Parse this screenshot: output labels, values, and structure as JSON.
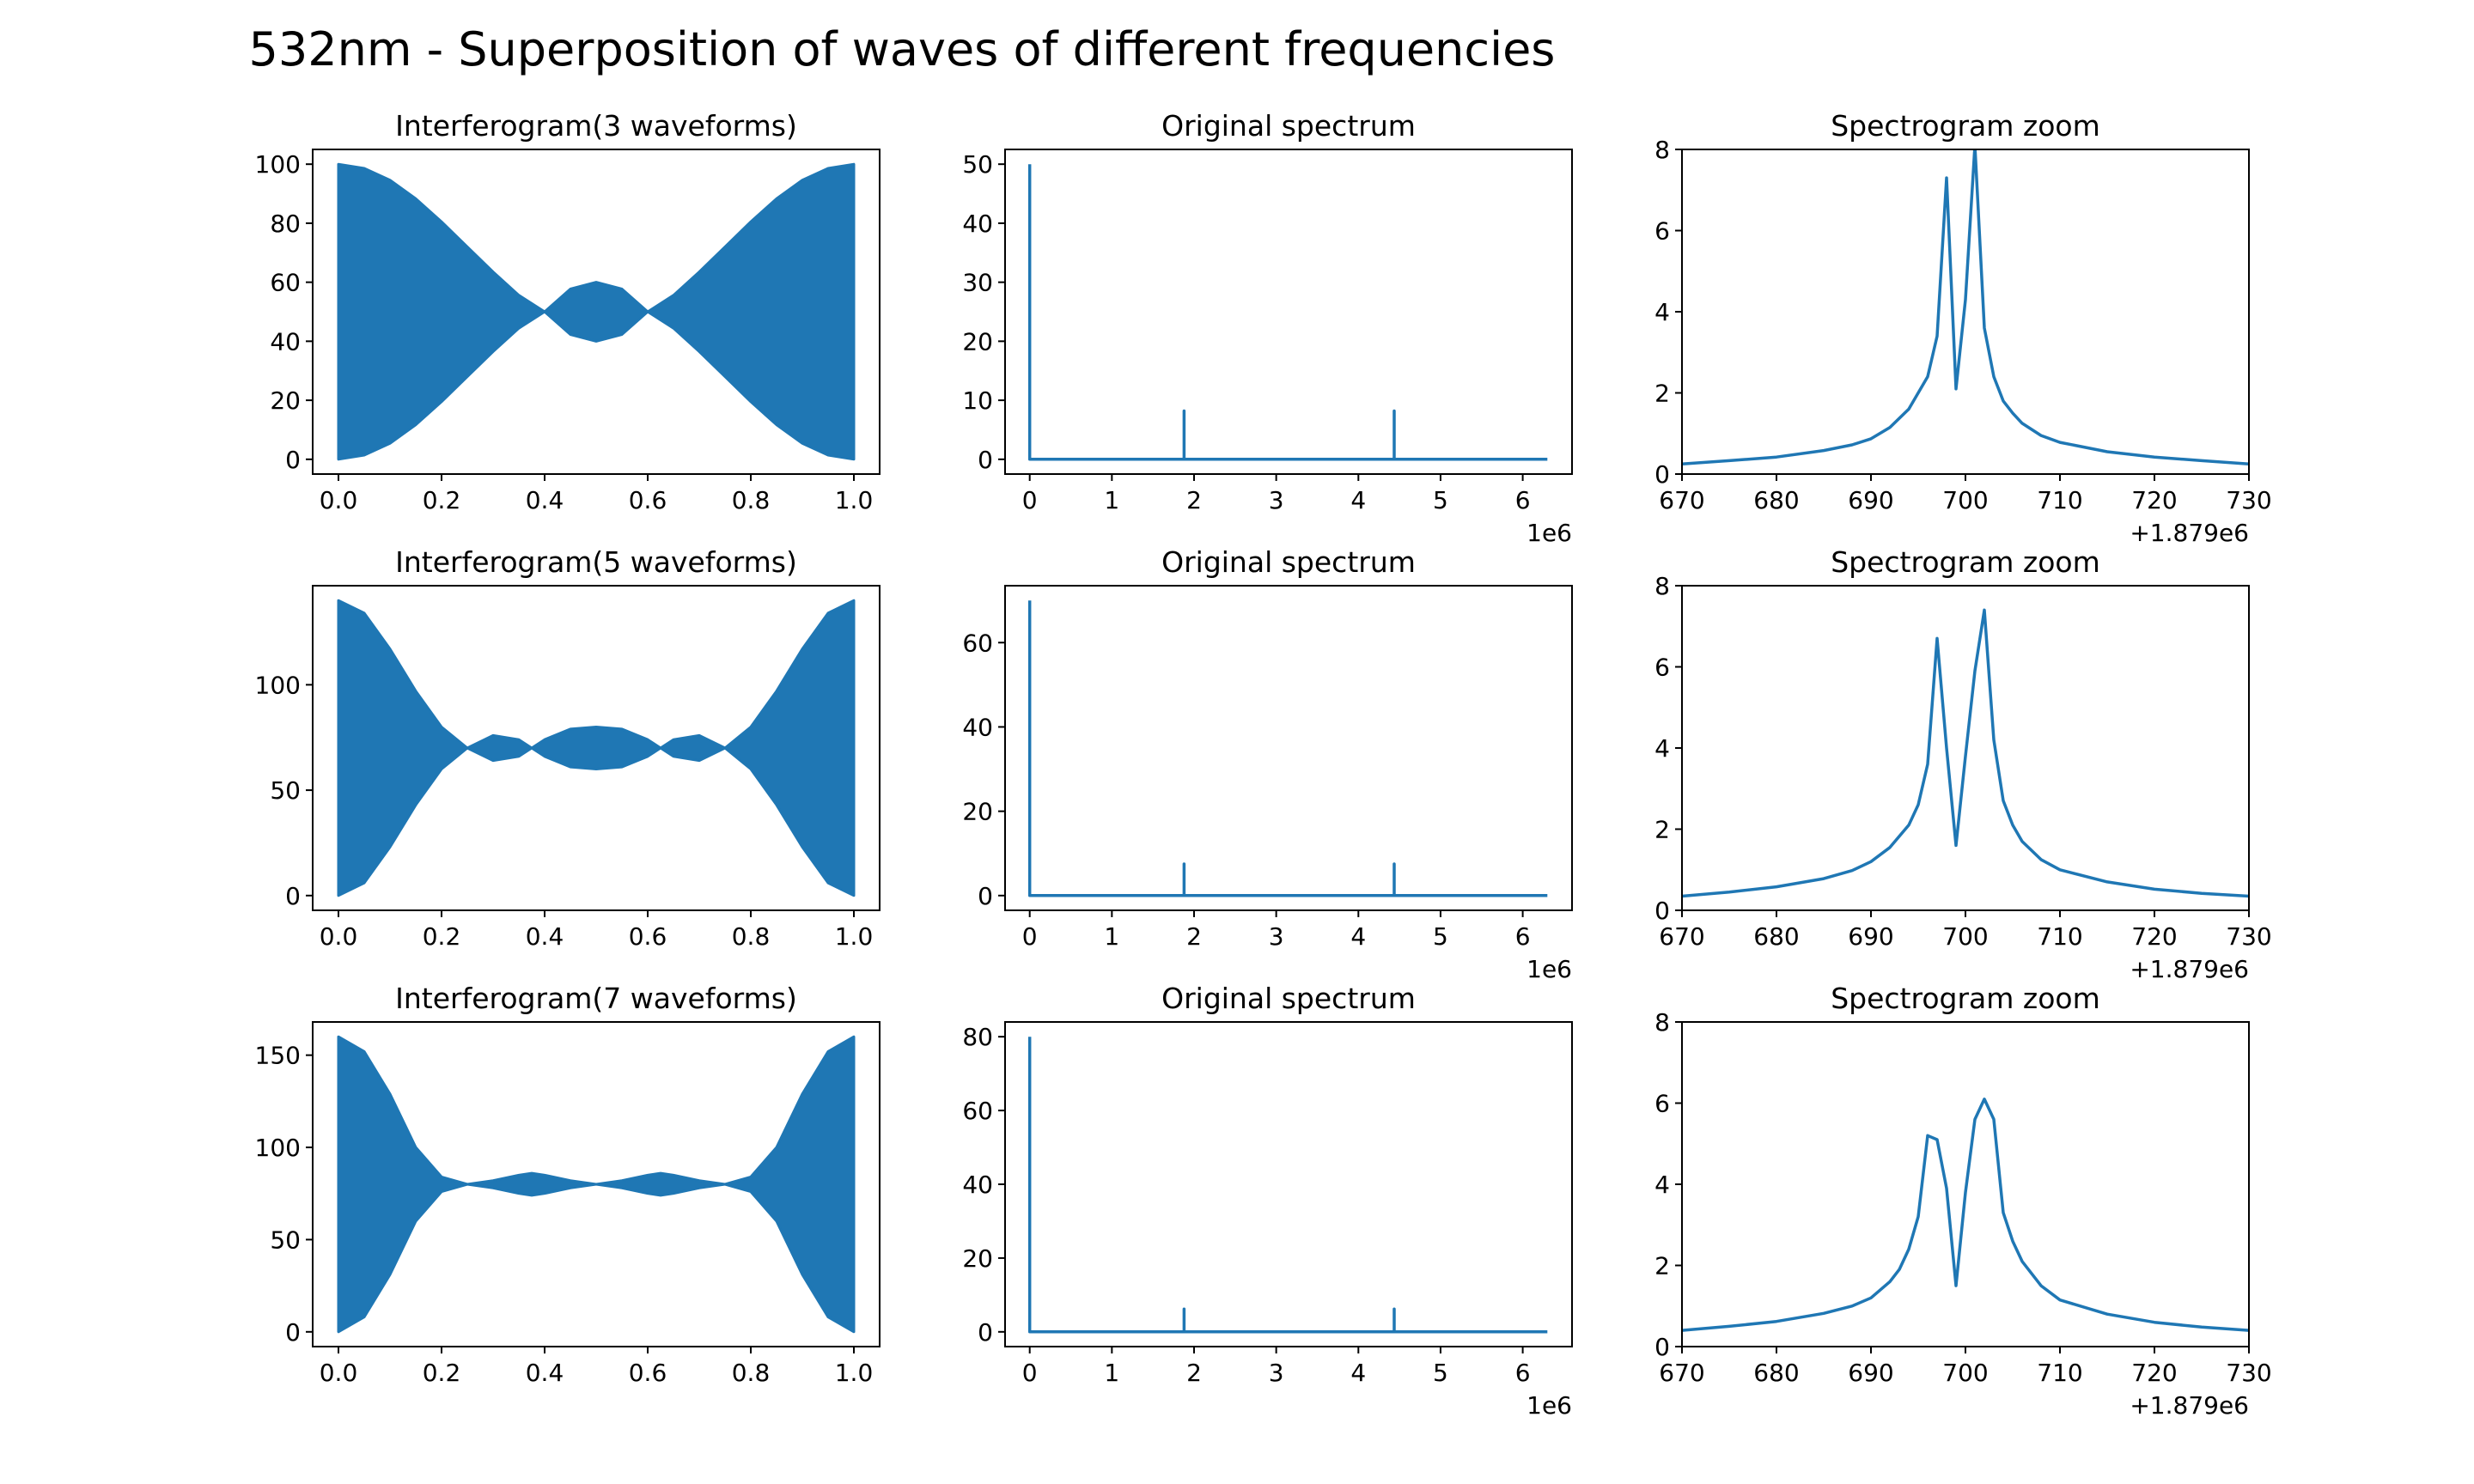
{
  "figure": {
    "suptitle": "532nm - Superposition of waves of different frequencies",
    "line_color": "#1f77b4"
  },
  "chart_data": [
    {
      "type": "area",
      "title": "Interferogram(3 waveforms)",
      "xlim": [
        -0.05,
        1.05
      ],
      "ylim": [
        -5,
        105
      ],
      "xticks": [
        0.0,
        0.2,
        0.4,
        0.6,
        0.8,
        1.0
      ],
      "xtick_labels": [
        "0.0",
        "0.2",
        "0.4",
        "0.6",
        "0.8",
        "1.0"
      ],
      "yticks": [
        0,
        20,
        40,
        60,
        80,
        100
      ],
      "ytick_labels": [
        "0",
        "20",
        "40",
        "60",
        "80",
        "100"
      ],
      "envelope": {
        "x": [
          0,
          0.05,
          0.1,
          0.15,
          0.2,
          0.25,
          0.3,
          0.35,
          0.4,
          0.45,
          0.5,
          0.55,
          0.6,
          0.65,
          0.7,
          0.75,
          0.8,
          0.85,
          0.9,
          0.95,
          1.0
        ],
        "upper": [
          100,
          98.6,
          94.6,
          88.3,
          80.5,
          72,
          63.5,
          55.6,
          50,
          57.7,
          60,
          57.7,
          50,
          55.6,
          63.5,
          72,
          80.5,
          88.3,
          94.6,
          98.6,
          100
        ],
        "lower": [
          0,
          1.4,
          5.4,
          11.7,
          19.5,
          28,
          36.5,
          44.4,
          50,
          42.3,
          40,
          42.3,
          50,
          44.4,
          36.5,
          28,
          19.5,
          11.7,
          5.4,
          1.4,
          0
        ]
      }
    },
    {
      "type": "line",
      "title": "Original spectrum",
      "xlim": [
        -0.3,
        6.6
      ],
      "ylim": [
        -2.5,
        52.5
      ],
      "xticks": [
        0,
        1,
        2,
        3,
        4,
        5,
        6
      ],
      "xtick_labels": [
        "0",
        "1",
        "2",
        "3",
        "4",
        "5",
        "6"
      ],
      "x_offset_label": "1e6",
      "yticks": [
        0,
        10,
        20,
        30,
        40,
        50
      ],
      "ytick_labels": [
        "0",
        "10",
        "20",
        "30",
        "40",
        "50"
      ],
      "x": [
        0,
        0,
        0.03,
        1.879,
        1.879,
        1.879,
        4.436,
        4.436,
        4.436,
        6.3
      ],
      "y": [
        50,
        0,
        0,
        0,
        8.2,
        0,
        0,
        8.2,
        0,
        0
      ]
    },
    {
      "type": "line",
      "title": "Spectrogram zoom",
      "xlim": [
        670,
        730
      ],
      "ylim": [
        0,
        8
      ],
      "xticks": [
        670,
        680,
        690,
        700,
        710,
        720,
        730
      ],
      "xtick_labels": [
        "670",
        "680",
        "690",
        "700",
        "710",
        "720",
        "730"
      ],
      "x_offset_label": "+1.879e6",
      "yticks": [
        0,
        2,
        4,
        6,
        8
      ],
      "ytick_labels": [
        "0",
        "2",
        "4",
        "6",
        "8"
      ],
      "x": [
        670,
        675,
        680,
        685,
        688,
        690,
        692,
        694,
        695,
        696,
        697,
        698,
        699,
        700,
        701,
        702,
        703,
        704,
        705,
        706,
        708,
        710,
        715,
        720,
        725,
        730
      ],
      "y": [
        0.25,
        0.33,
        0.42,
        0.58,
        0.72,
        0.87,
        1.15,
        1.6,
        2.0,
        2.4,
        3.4,
        7.3,
        2.1,
        4.3,
        8.1,
        3.6,
        2.4,
        1.8,
        1.5,
        1.25,
        0.95,
        0.78,
        0.55,
        0.42,
        0.33,
        0.25
      ]
    },
    {
      "type": "area",
      "title": "Interferogram(5 waveforms)",
      "xlim": [
        -0.05,
        1.05
      ],
      "ylim": [
        -7,
        147
      ],
      "xticks": [
        0.0,
        0.2,
        0.4,
        0.6,
        0.8,
        1.0
      ],
      "xtick_labels": [
        "0.0",
        "0.2",
        "0.4",
        "0.6",
        "0.8",
        "1.0"
      ],
      "yticks": [
        0,
        50,
        100
      ],
      "ytick_labels": [
        "0",
        "50",
        "100"
      ],
      "envelope": {
        "x": [
          0,
          0.05,
          0.1,
          0.15,
          0.2,
          0.25,
          0.3,
          0.35,
          0.375,
          0.4,
          0.45,
          0.5,
          0.55,
          0.6,
          0.625,
          0.65,
          0.7,
          0.75,
          0.8,
          0.85,
          0.9,
          0.95,
          1.0
        ],
        "upper": [
          140,
          134,
          117,
          97,
          80,
          70,
          76,
          74,
          70,
          74,
          79,
          80,
          79,
          74,
          70,
          74,
          76,
          70,
          80,
          97,
          117,
          134,
          140
        ],
        "lower": [
          0,
          6,
          23,
          43,
          60,
          70,
          64,
          66,
          70,
          66,
          61,
          60,
          61,
          66,
          70,
          66,
          64,
          70,
          60,
          43,
          23,
          6,
          0
        ]
      }
    },
    {
      "type": "line",
      "title": "Original spectrum",
      "xlim": [
        -0.3,
        6.6
      ],
      "ylim": [
        -3.5,
        73.5
      ],
      "xticks": [
        0,
        1,
        2,
        3,
        4,
        5,
        6
      ],
      "xtick_labels": [
        "0",
        "1",
        "2",
        "3",
        "4",
        "5",
        "6"
      ],
      "x_offset_label": "1e6",
      "yticks": [
        0,
        20,
        40,
        60
      ],
      "ytick_labels": [
        "0",
        "20",
        "40",
        "60"
      ],
      "x": [
        0,
        0,
        0.03,
        1.879,
        1.879,
        1.879,
        4.436,
        4.436,
        4.436,
        6.3
      ],
      "y": [
        70,
        0,
        0,
        0,
        7.5,
        0,
        0,
        7.5,
        0,
        0
      ]
    },
    {
      "type": "line",
      "title": "Spectrogram zoom",
      "xlim": [
        670,
        730
      ],
      "ylim": [
        0,
        8
      ],
      "xticks": [
        670,
        680,
        690,
        700,
        710,
        720,
        730
      ],
      "xtick_labels": [
        "670",
        "680",
        "690",
        "700",
        "710",
        "720",
        "730"
      ],
      "x_offset_label": "+1.879e6",
      "yticks": [
        0,
        2,
        4,
        6,
        8
      ],
      "ytick_labels": [
        "0",
        "2",
        "4",
        "6",
        "8"
      ],
      "x": [
        670,
        675,
        680,
        685,
        688,
        690,
        692,
        694,
        695,
        696,
        697,
        698,
        699,
        700,
        701,
        702,
        703,
        704,
        705,
        706,
        708,
        710,
        715,
        720,
        725,
        730
      ],
      "y": [
        0.35,
        0.45,
        0.58,
        0.78,
        0.98,
        1.2,
        1.55,
        2.1,
        2.6,
        3.6,
        6.7,
        4.0,
        1.6,
        3.8,
        5.9,
        7.4,
        4.2,
        2.7,
        2.1,
        1.7,
        1.25,
        1.0,
        0.7,
        0.52,
        0.42,
        0.35
      ]
    },
    {
      "type": "area",
      "title": "Interferogram(7 waveforms)",
      "xlim": [
        -0.05,
        1.05
      ],
      "ylim": [
        -8,
        168
      ],
      "xticks": [
        0.0,
        0.2,
        0.4,
        0.6,
        0.8,
        1.0
      ],
      "xtick_labels": [
        "0.0",
        "0.2",
        "0.4",
        "0.6",
        "0.8",
        "1.0"
      ],
      "yticks": [
        0,
        50,
        100,
        150
      ],
      "ytick_labels": [
        "0",
        "50",
        "100",
        "150"
      ],
      "envelope": {
        "x": [
          0,
          0.05,
          0.1,
          0.15,
          0.2,
          0.25,
          0.3,
          0.35,
          0.375,
          0.4,
          0.45,
          0.5,
          0.55,
          0.6,
          0.625,
          0.65,
          0.7,
          0.75,
          0.8,
          0.85,
          0.9,
          0.95,
          1.0
        ],
        "upper": [
          160,
          152,
          129,
          100,
          84,
          80,
          82,
          85,
          86,
          85,
          82,
          80,
          82,
          85,
          86,
          85,
          82,
          80,
          84,
          100,
          129,
          152,
          160
        ],
        "lower": [
          0,
          8,
          31,
          60,
          76,
          80,
          78,
          75,
          74,
          75,
          78,
          80,
          78,
          75,
          74,
          75,
          78,
          80,
          76,
          60,
          31,
          8,
          0
        ]
      }
    },
    {
      "type": "line",
      "title": "Original spectrum",
      "xlim": [
        -0.3,
        6.6
      ],
      "ylim": [
        -4,
        84
      ],
      "xticks": [
        0,
        1,
        2,
        3,
        4,
        5,
        6
      ],
      "xtick_labels": [
        "0",
        "1",
        "2",
        "3",
        "4",
        "5",
        "6"
      ],
      "x_offset_label": "1e6",
      "yticks": [
        0,
        20,
        40,
        60,
        80
      ],
      "ytick_labels": [
        "0",
        "20",
        "40",
        "60",
        "80"
      ],
      "x": [
        0,
        0,
        0.03,
        1.879,
        1.879,
        1.879,
        4.436,
        4.436,
        4.436,
        6.3
      ],
      "y": [
        80,
        0,
        0,
        0,
        6.2,
        0,
        0,
        6.2,
        0,
        0
      ]
    },
    {
      "type": "line",
      "title": "Spectrogram zoom",
      "xlim": [
        670,
        730
      ],
      "ylim": [
        0,
        8
      ],
      "xticks": [
        670,
        680,
        690,
        700,
        710,
        720,
        730
      ],
      "xtick_labels": [
        "670",
        "680",
        "690",
        "700",
        "710",
        "720",
        "730"
      ],
      "x_offset_label": "+1.879e6",
      "yticks": [
        0,
        2,
        4,
        6,
        8
      ],
      "ytick_labels": [
        "0",
        "2",
        "4",
        "6",
        "8"
      ],
      "x": [
        670,
        675,
        680,
        685,
        688,
        690,
        692,
        693,
        694,
        695,
        696,
        697,
        698,
        699,
        700,
        701,
        702,
        703,
        704,
        705,
        706,
        708,
        710,
        715,
        720,
        725,
        730
      ],
      "y": [
        0.4,
        0.5,
        0.62,
        0.82,
        1.0,
        1.2,
        1.6,
        1.9,
        2.4,
        3.2,
        5.2,
        5.1,
        3.9,
        1.5,
        3.8,
        5.6,
        6.1,
        5.6,
        3.3,
        2.6,
        2.1,
        1.5,
        1.15,
        0.8,
        0.6,
        0.48,
        0.4
      ]
    }
  ]
}
